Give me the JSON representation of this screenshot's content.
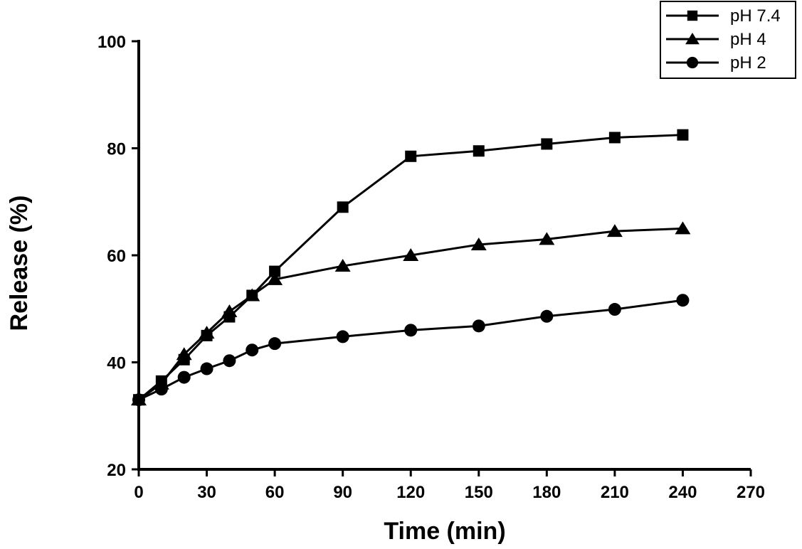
{
  "chart_data": {
    "type": "line",
    "title": "",
    "xlabel": "Time (min)",
    "ylabel": "Release (%)",
    "xlim": [
      0,
      270
    ],
    "ylim": [
      20,
      100
    ],
    "xticks": [
      0,
      30,
      60,
      90,
      120,
      150,
      180,
      210,
      240,
      270
    ],
    "yticks": [
      20,
      40,
      60,
      80,
      100
    ],
    "grid": false,
    "legend_position": "top-right",
    "series": [
      {
        "name": "pH 7.4",
        "marker": "square",
        "x": [
          0,
          10,
          20,
          30,
          40,
          50,
          60,
          90,
          120,
          150,
          180,
          210,
          240
        ],
        "y": [
          33,
          36.5,
          40.5,
          45,
          48.5,
          52.5,
          57,
          69,
          78.5,
          79.5,
          80.8,
          82,
          82.5
        ]
      },
      {
        "name": "pH 4",
        "marker": "triangle",
        "x": [
          0,
          10,
          20,
          30,
          40,
          50,
          60,
          90,
          120,
          150,
          180,
          210,
          240
        ],
        "y": [
          33,
          36,
          41.5,
          45.5,
          49.5,
          52.5,
          55.5,
          58,
          60,
          62,
          63,
          64.5,
          65
        ]
      },
      {
        "name": "pH 2",
        "marker": "circle",
        "x": [
          0,
          10,
          20,
          30,
          40,
          50,
          60,
          90,
          120,
          150,
          180,
          210,
          240
        ],
        "y": [
          33,
          35,
          37.2,
          38.8,
          40.3,
          42.3,
          43.5,
          44.8,
          46,
          46.8,
          48.6,
          49.9,
          51.6
        ]
      }
    ]
  }
}
